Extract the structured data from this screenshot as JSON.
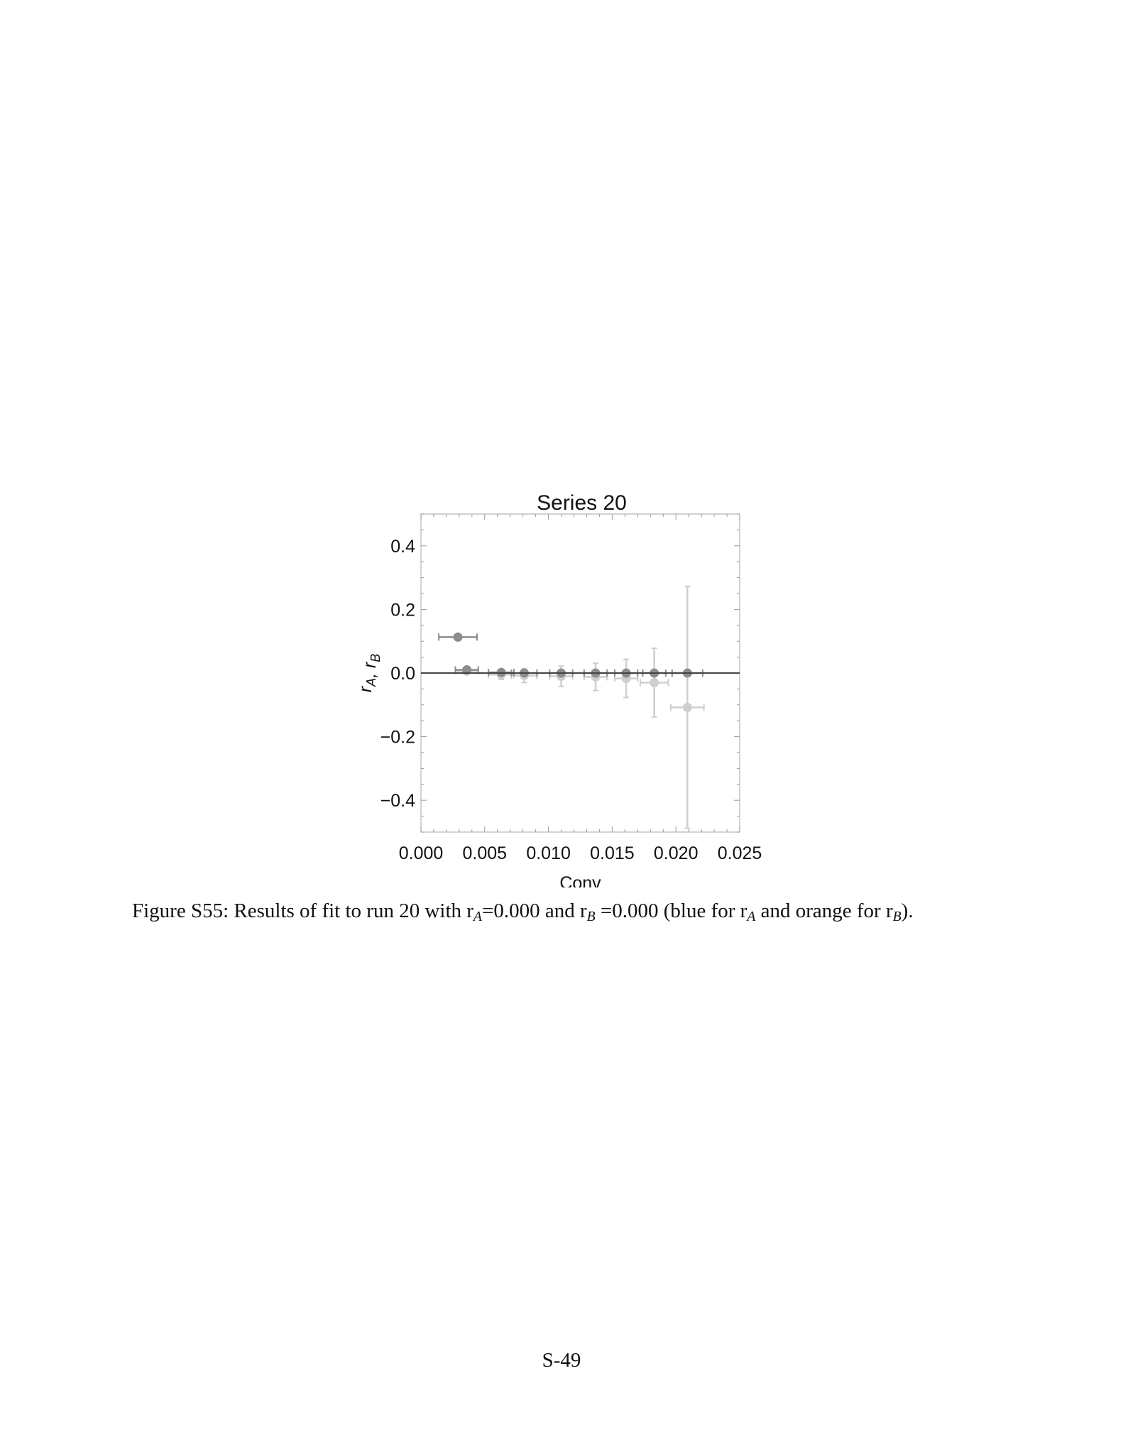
{
  "chart_data": {
    "type": "scatter",
    "title": "Series 20",
    "xlabel": "Conv",
    "ylabel": "r_A, r_B",
    "xlim": [
      0.0,
      0.025
    ],
    "ylim": [
      -0.5,
      0.5
    ],
    "x_ticks": [
      "0.000",
      "0.005",
      "0.010",
      "0.015",
      "0.020",
      "0.025"
    ],
    "y_ticks": [
      "0.4",
      "0.2",
      "0.0",
      "−0.2",
      "−0.4"
    ],
    "reference_line_y": 0.0,
    "series": [
      {
        "color": "#8c8c8c",
        "points": [
          {
            "x": 0.0029,
            "y": 0.113,
            "xerr": 0.0015,
            "yerr": 0.006
          },
          {
            "x": 0.0036,
            "y": 0.01,
            "xerr": 0.0009,
            "yerr": 0.004
          },
          {
            "x": 0.0063,
            "y": 0.002,
            "xerr": 0.001,
            "yerr": 0.003
          },
          {
            "x": 0.0081,
            "y": 0.0,
            "xerr": 0.001,
            "yerr": 0.003
          },
          {
            "x": 0.011,
            "y": 0.0,
            "xerr": 0.0009,
            "yerr": 0.002
          },
          {
            "x": 0.0137,
            "y": 0.0,
            "xerr": 0.0009,
            "yerr": 0.002
          },
          {
            "x": 0.0161,
            "y": 0.0,
            "xerr": 0.0009,
            "yerr": 0.002
          },
          {
            "x": 0.0183,
            "y": 0.0,
            "xerr": 0.0009,
            "yerr": 0.002
          },
          {
            "x": 0.0209,
            "y": 0.0,
            "xerr": 0.0012,
            "yerr": 0.002
          }
        ]
      },
      {
        "color": "#cfcfcf",
        "points": [
          {
            "x": 0.0036,
            "y": 0.006,
            "xerr": 0.0009,
            "yerr": 0.01
          },
          {
            "x": 0.0063,
            "y": -0.005,
            "xerr": 0.001,
            "yerr": 0.015
          },
          {
            "x": 0.0081,
            "y": -0.008,
            "xerr": 0.001,
            "yerr": 0.022
          },
          {
            "x": 0.011,
            "y": -0.01,
            "xerr": 0.0009,
            "yerr": 0.032
          },
          {
            "x": 0.0137,
            "y": -0.012,
            "xerr": 0.0009,
            "yerr": 0.043
          },
          {
            "x": 0.0161,
            "y": -0.017,
            "xerr": 0.0009,
            "yerr": 0.06
          },
          {
            "x": 0.0183,
            "y": -0.03,
            "xerr": 0.0011,
            "yerr": 0.108
          },
          {
            "x": 0.0209,
            "y": -0.108,
            "xerr": 0.0013,
            "yerr": 0.38
          }
        ]
      }
    ]
  },
  "caption": {
    "prefix": "Figure S55:",
    "part1": "Results of fit to run 20 with r",
    "sub_a": "A",
    "part2": "=0.000 and r",
    "sub_b": "B",
    "part3": "=0.000 (blue for r",
    "sub_c": "A",
    "part4": " and orange for r",
    "sub_d": "B",
    "part5": ")."
  },
  "page_number": "S-49"
}
